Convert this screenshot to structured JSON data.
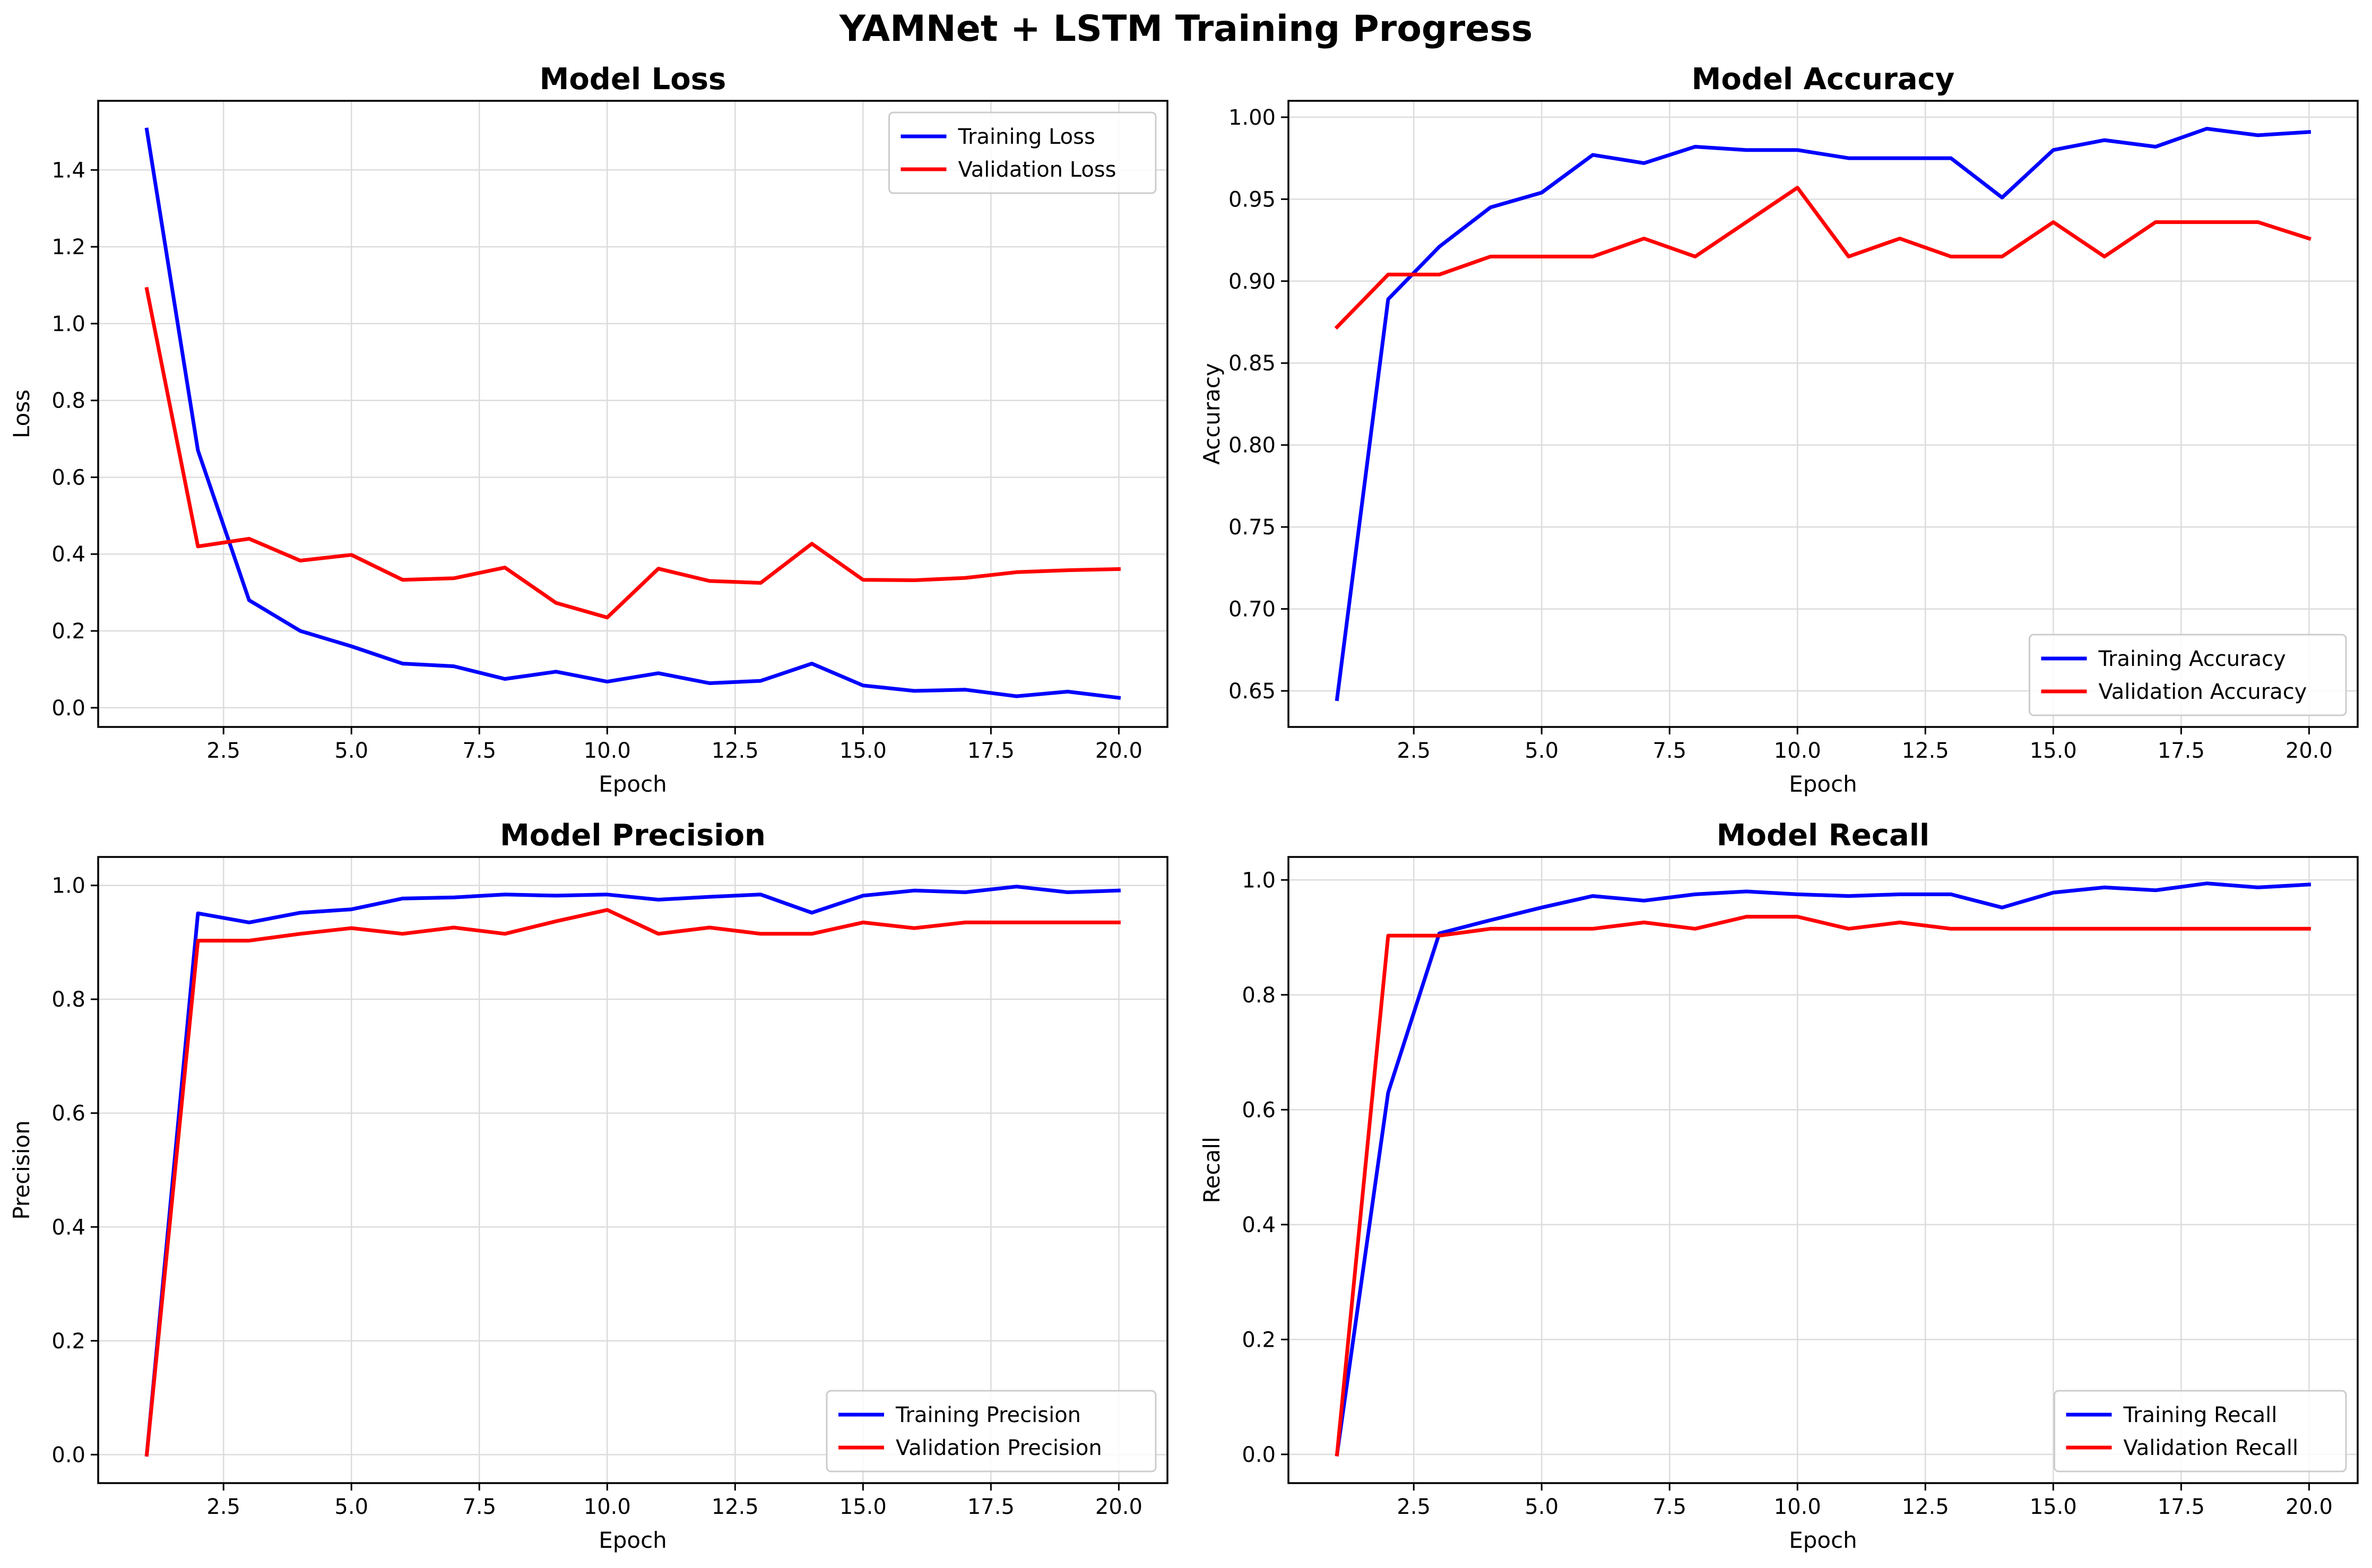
{
  "figure": {
    "title": "YAMNet + LSTM Training Progress"
  },
  "colors": {
    "training": "#0000ff",
    "validation": "#ff0000",
    "grid": "#dcdcdc",
    "axes": "#000000"
  },
  "chart_data": [
    {
      "type": "line",
      "title": "Model Loss",
      "xlabel": "Epoch",
      "ylabel": "Loss",
      "xlim": [
        0.05,
        20.95
      ],
      "ylim": [
        -0.05,
        1.58
      ],
      "xticks": [
        2.5,
        5.0,
        7.5,
        10.0,
        12.5,
        15.0,
        17.5,
        20.0
      ],
      "xtick_labels": [
        "2.5",
        "5.0",
        "7.5",
        "10.0",
        "12.5",
        "15.0",
        "17.5",
        "20.0"
      ],
      "yticks": [
        0.0,
        0.2,
        0.4,
        0.6,
        0.8,
        1.0,
        1.2,
        1.4
      ],
      "ytick_labels": [
        "0.0",
        "0.2",
        "0.4",
        "0.6",
        "0.8",
        "1.0",
        "1.2",
        "1.4"
      ],
      "grid": true,
      "legend_position": "upper-right",
      "x": [
        1,
        2,
        3,
        4,
        5,
        6,
        7,
        8,
        9,
        10,
        11,
        12,
        13,
        14,
        15,
        16,
        17,
        18,
        19,
        20
      ],
      "series": [
        {
          "name": "Training Loss",
          "color": "#0000ff",
          "values": [
            1.505,
            0.67,
            0.28,
            0.2,
            0.16,
            0.115,
            0.108,
            0.075,
            0.094,
            0.068,
            0.09,
            0.064,
            0.07,
            0.115,
            0.058,
            0.044,
            0.047,
            0.03,
            0.042,
            0.026
          ]
        },
        {
          "name": "Validation Loss",
          "color": "#ff0000",
          "values": [
            1.09,
            0.42,
            0.44,
            0.383,
            0.398,
            0.333,
            0.337,
            0.365,
            0.273,
            0.235,
            0.362,
            0.33,
            0.325,
            0.427,
            0.333,
            0.332,
            0.338,
            0.353,
            0.358,
            0.361
          ]
        }
      ]
    },
    {
      "type": "line",
      "title": "Model Accuracy",
      "xlabel": "Epoch",
      "ylabel": "Accuracy",
      "xlim": [
        0.05,
        20.95
      ],
      "ylim": [
        0.628,
        1.01
      ],
      "xticks": [
        2.5,
        5.0,
        7.5,
        10.0,
        12.5,
        15.0,
        17.5,
        20.0
      ],
      "xtick_labels": [
        "2.5",
        "5.0",
        "7.5",
        "10.0",
        "12.5",
        "15.0",
        "17.5",
        "20.0"
      ],
      "yticks": [
        0.65,
        0.7,
        0.75,
        0.8,
        0.85,
        0.9,
        0.95,
        1.0
      ],
      "ytick_labels": [
        "0.65",
        "0.70",
        "0.75",
        "0.80",
        "0.85",
        "0.90",
        "0.95",
        "1.00"
      ],
      "grid": true,
      "legend_position": "lower-right",
      "x": [
        1,
        2,
        3,
        4,
        5,
        6,
        7,
        8,
        9,
        10,
        11,
        12,
        13,
        14,
        15,
        16,
        17,
        18,
        19,
        20
      ],
      "series": [
        {
          "name": "Training Accuracy",
          "color": "#0000ff",
          "values": [
            0.645,
            0.889,
            0.921,
            0.945,
            0.954,
            0.977,
            0.972,
            0.982,
            0.98,
            0.98,
            0.975,
            0.975,
            0.975,
            0.951,
            0.98,
            0.986,
            0.982,
            0.993,
            0.989,
            0.991
          ]
        },
        {
          "name": "Validation Accuracy",
          "color": "#ff0000",
          "values": [
            0.872,
            0.904,
            0.904,
            0.915,
            0.915,
            0.915,
            0.926,
            0.915,
            0.936,
            0.957,
            0.915,
            0.926,
            0.915,
            0.915,
            0.936,
            0.915,
            0.936,
            0.936,
            0.936,
            0.926
          ]
        }
      ]
    },
    {
      "type": "line",
      "title": "Model Precision",
      "xlabel": "Epoch",
      "ylabel": "Precision",
      "xlim": [
        0.05,
        20.95
      ],
      "ylim": [
        -0.05,
        1.05
      ],
      "xticks": [
        2.5,
        5.0,
        7.5,
        10.0,
        12.5,
        15.0,
        17.5,
        20.0
      ],
      "xtick_labels": [
        "2.5",
        "5.0",
        "7.5",
        "10.0",
        "12.5",
        "15.0",
        "17.5",
        "20.0"
      ],
      "yticks": [
        0.0,
        0.2,
        0.4,
        0.6,
        0.8,
        1.0
      ],
      "ytick_labels": [
        "0.0",
        "0.2",
        "0.4",
        "0.6",
        "0.8",
        "1.0"
      ],
      "grid": true,
      "legend_position": "lower-right",
      "x": [
        1,
        2,
        3,
        4,
        5,
        6,
        7,
        8,
        9,
        10,
        11,
        12,
        13,
        14,
        15,
        16,
        17,
        18,
        19,
        20
      ],
      "series": [
        {
          "name": "Training Precision",
          "color": "#0000ff",
          "values": [
            0.0,
            0.951,
            0.935,
            0.952,
            0.958,
            0.977,
            0.979,
            0.984,
            0.982,
            0.984,
            0.975,
            0.98,
            0.984,
            0.952,
            0.982,
            0.991,
            0.988,
            0.998,
            0.988,
            0.991
          ]
        },
        {
          "name": "Validation Precision",
          "color": "#ff0000",
          "values": [
            0.0,
            0.903,
            0.903,
            0.915,
            0.925,
            0.915,
            0.926,
            0.915,
            0.937,
            0.957,
            0.915,
            0.926,
            0.915,
            0.915,
            0.935,
            0.925,
            0.935,
            0.935,
            0.935,
            0.935
          ]
        }
      ]
    },
    {
      "type": "line",
      "title": "Model Recall",
      "xlabel": "Epoch",
      "ylabel": "Recall",
      "xlim": [
        0.05,
        20.95
      ],
      "ylim": [
        -0.05,
        1.04
      ],
      "xticks": [
        2.5,
        5.0,
        7.5,
        10.0,
        12.5,
        15.0,
        17.5,
        20.0
      ],
      "xtick_labels": [
        "2.5",
        "5.0",
        "7.5",
        "10.0",
        "12.5",
        "15.0",
        "17.5",
        "20.0"
      ],
      "yticks": [
        0.0,
        0.2,
        0.4,
        0.6,
        0.8,
        1.0
      ],
      "ytick_labels": [
        "0.0",
        "0.2",
        "0.4",
        "0.6",
        "0.8",
        "1.0"
      ],
      "grid": true,
      "legend_position": "lower-right",
      "x": [
        1,
        2,
        3,
        4,
        5,
        6,
        7,
        8,
        9,
        10,
        11,
        12,
        13,
        14,
        15,
        16,
        17,
        18,
        19,
        20
      ],
      "series": [
        {
          "name": "Training Recall",
          "color": "#0000ff",
          "values": [
            0.0,
            0.63,
            0.907,
            0.93,
            0.952,
            0.972,
            0.964,
            0.975,
            0.98,
            0.975,
            0.972,
            0.975,
            0.975,
            0.952,
            0.978,
            0.987,
            0.982,
            0.994,
            0.987,
            0.992
          ]
        },
        {
          "name": "Validation Recall",
          "color": "#ff0000",
          "values": [
            0.0,
            0.903,
            0.903,
            0.915,
            0.915,
            0.915,
            0.926,
            0.915,
            0.936,
            0.936,
            0.915,
            0.926,
            0.915,
            0.915,
            0.915,
            0.915,
            0.915,
            0.915,
            0.915,
            0.915
          ]
        }
      ]
    }
  ]
}
